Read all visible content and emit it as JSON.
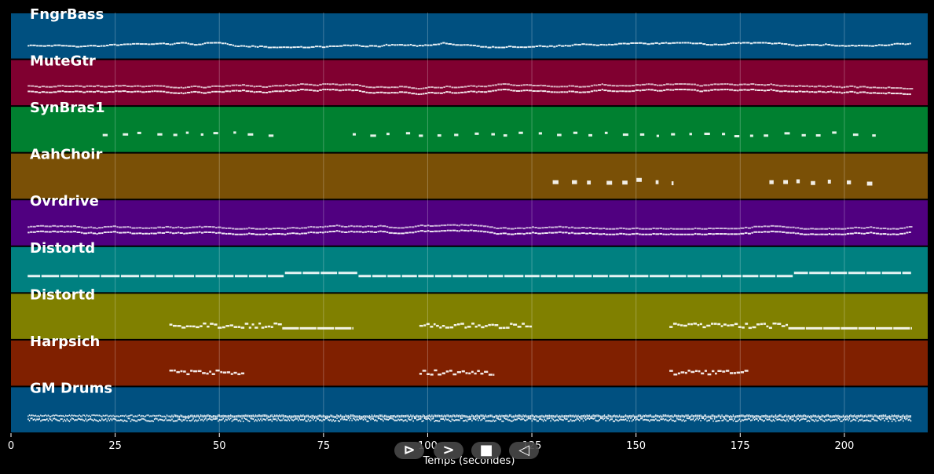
{
  "chart_data": {
    "type": "piano-roll",
    "xlabel": "Temps (secondes)",
    "xlim": [
      0,
      220
    ],
    "xticks": [
      0,
      25,
      50,
      75,
      100,
      125,
      150,
      175,
      200
    ],
    "tracks": [
      {
        "name": "FngrBass",
        "color": "#005080",
        "pattern": "dense",
        "spans": [
          [
            4,
            216
          ]
        ]
      },
      {
        "name": "MuteGtr",
        "color": "#800030",
        "pattern": "dense-stacked",
        "spans": [
          [
            4,
            216
          ]
        ]
      },
      {
        "name": "SynBras1",
        "color": "#008030",
        "pattern": "sparse",
        "spans": [
          [
            22,
            63
          ],
          [
            82,
            208
          ]
        ]
      },
      {
        "name": "AahChoir",
        "color": "#7a5006",
        "pattern": "sparse-blocks",
        "spans": [
          [
            130,
            159
          ],
          [
            182,
            208
          ]
        ]
      },
      {
        "name": "Ovrdrive",
        "color": "#500080",
        "pattern": "dense-stacked",
        "spans": [
          [
            4,
            216
          ]
        ]
      },
      {
        "name": "Distortd",
        "color": "#008080",
        "pattern": "sustained",
        "spans": [
          [
            4,
            216
          ]
        ]
      },
      {
        "name": "Distortd",
        "color": "#808000",
        "pattern": "riff-then-hold",
        "spans": [
          [
            38,
            82
          ],
          [
            98,
            125
          ],
          [
            158,
            216
          ]
        ]
      },
      {
        "name": "Harpsich",
        "color": "#802000",
        "pattern": "riff",
        "spans": [
          [
            38,
            56
          ],
          [
            98,
            116
          ],
          [
            158,
            177
          ]
        ]
      },
      {
        "name": "GM Drums",
        "color": "#005080",
        "pattern": "drums",
        "spans": [
          [
            4,
            216
          ]
        ]
      }
    ]
  },
  "controls": {
    "rewind_symbol": "⊳",
    "play_symbol": ">",
    "stop_symbol": "■",
    "back_symbol": "◁"
  }
}
